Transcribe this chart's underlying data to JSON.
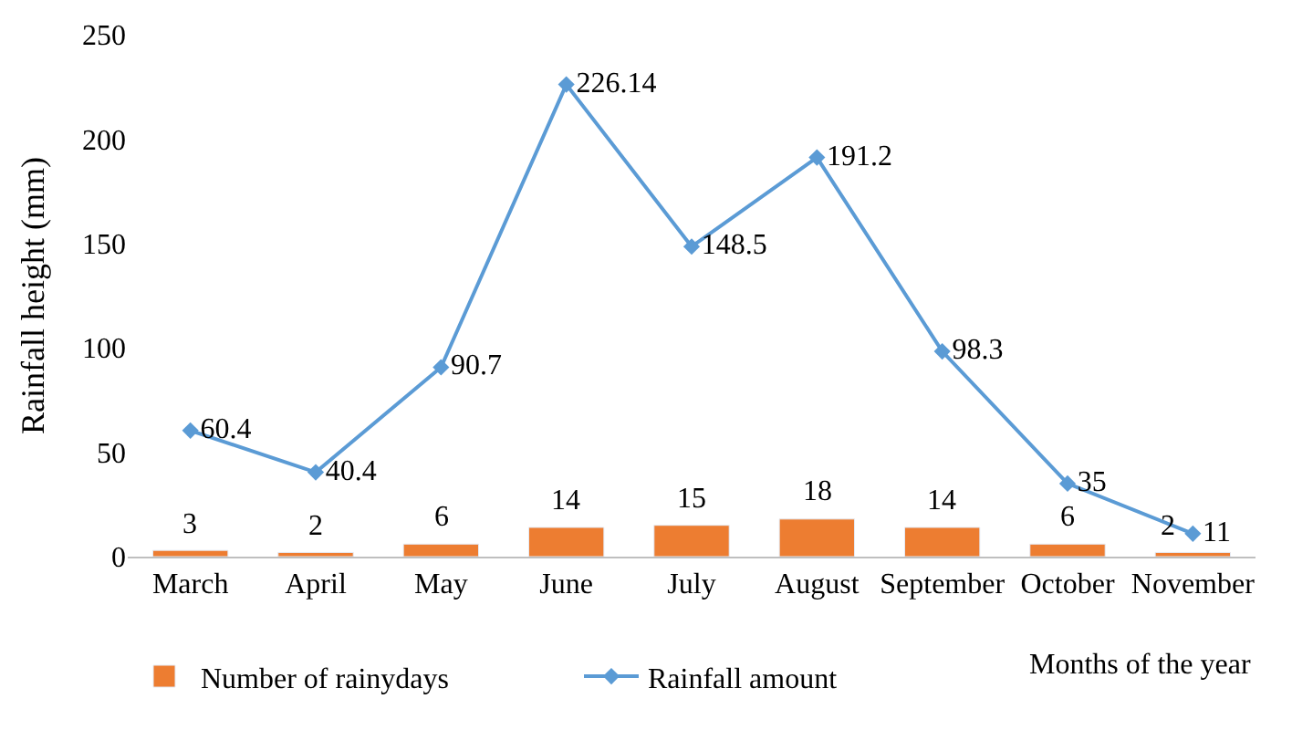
{
  "chart_data": {
    "type": "bar",
    "xlabel": "Months of the year",
    "ylabel": "Rainfall height (mm)",
    "categories": [
      "March",
      "April",
      "May",
      "June",
      "July",
      "August",
      "September",
      "October",
      "November"
    ],
    "series": [
      {
        "name": "Number of rainydays",
        "color": "#ed7d31",
        "values": [
          3,
          2,
          6,
          14,
          15,
          18,
          14,
          6,
          2
        ]
      },
      {
        "name": "Rainfall amount",
        "type": "line",
        "color": "#5b9bd5",
        "values": [
          60.4,
          40.4,
          90.7,
          226.14,
          148.5,
          191.2,
          98.3,
          35,
          11
        ]
      }
    ],
    "ylim": [
      0,
      250
    ],
    "yticks": [
      0,
      50,
      100,
      150,
      200,
      250
    ],
    "grid": false,
    "legend": "bottom",
    "marker": "diamond",
    "line_style": "solid",
    "data_labels": true
  }
}
